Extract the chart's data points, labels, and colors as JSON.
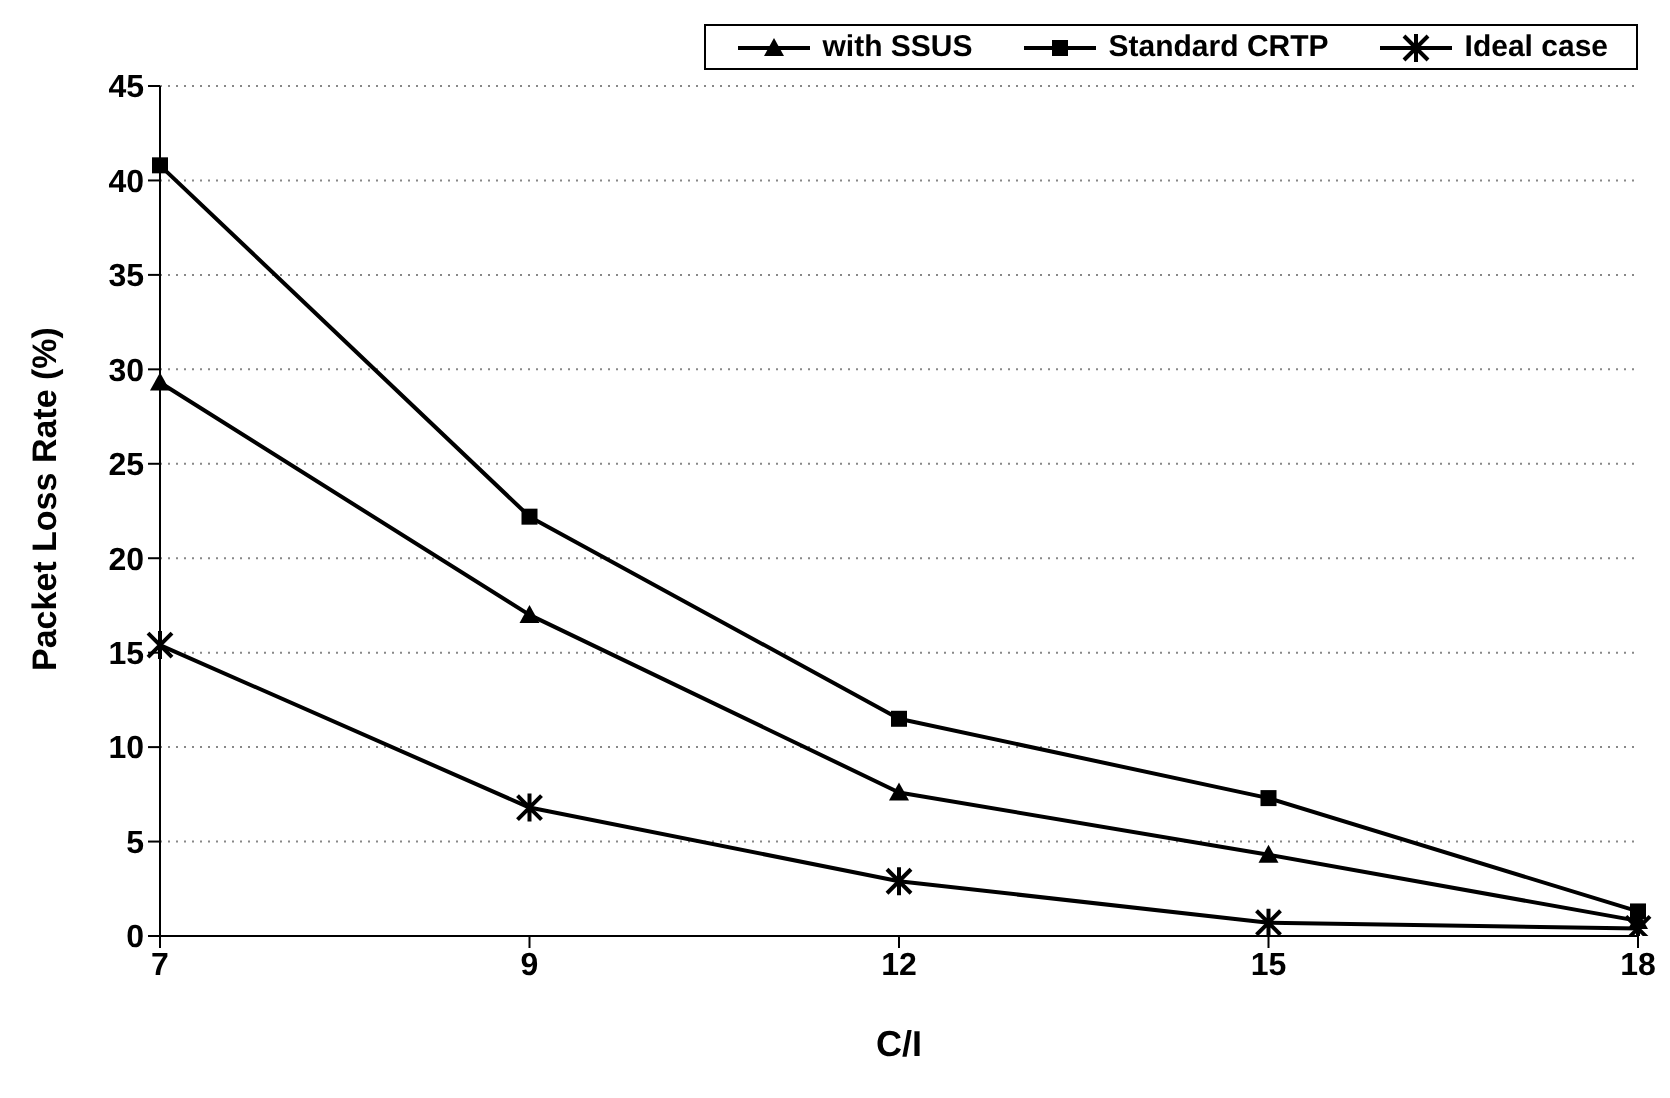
{
  "chart_data": {
    "type": "line",
    "xlabel": "C/I",
    "ylabel": "Packet Loss Rate (%)",
    "categories": [
      "7",
      "9",
      "12",
      "15",
      "18"
    ],
    "ylim": [
      0,
      45
    ],
    "yticks": [
      0,
      5,
      10,
      15,
      20,
      25,
      30,
      35,
      40,
      45
    ],
    "grid": "y",
    "legend": "top",
    "series": [
      {
        "name": "with SSUS",
        "color": "#000000",
        "marker": "triangle",
        "values": [
          29.3,
          17.0,
          7.6,
          4.3,
          0.8
        ]
      },
      {
        "name": "Standard CRTP",
        "color": "#000000",
        "marker": "square",
        "values": [
          40.8,
          22.2,
          11.5,
          7.3,
          1.3
        ]
      },
      {
        "name": "Ideal case",
        "color": "#000000",
        "marker": "cross",
        "values": [
          15.4,
          6.8,
          2.9,
          0.7,
          0.4
        ]
      }
    ]
  }
}
